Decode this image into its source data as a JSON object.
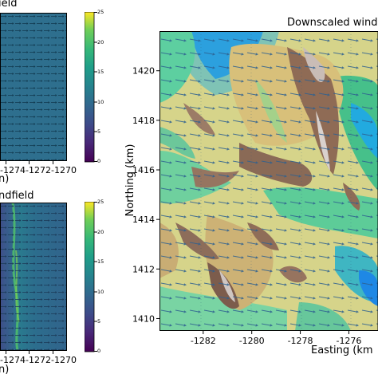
{
  "panel_top_left": {
    "title_fragment": "ield",
    "x_ticks": [
      "1274",
      "1272",
      "1270"
    ],
    "xlabel_fragment": "n)"
  },
  "panel_bottom_left": {
    "title_fragment": "ndfield",
    "xlabel_fragment": "n)"
  },
  "colorbars": {
    "ticks": [
      "25",
      "20",
      "15",
      "10",
      "5",
      "0"
    ],
    "colormap": "viridis"
  },
  "main_panel": {
    "title_fragment": "Downscaled wind",
    "xlabel_fragment": "Easting (km",
    "ylabel": "Northing (km)",
    "terrain_colormap": "terrain",
    "vector_color": "#2a4f9a"
  },
  "chart_data": [
    {
      "type": "heatmap",
      "title": "ield",
      "x_ticks": [
        -1274,
        -1272,
        -1270
      ],
      "colorbar": {
        "min": 0,
        "max": 25,
        "ticks": [
          0,
          5,
          10,
          15,
          20,
          25
        ]
      },
      "field_value": 12,
      "overlay": "wind vectors pointing east"
    },
    {
      "type": "heatmap",
      "title": "ndfield",
      "x_ticks": [
        -1274,
        -1272,
        -1270
      ],
      "colorbar": {
        "min": 0,
        "max": 25,
        "ticks": [
          0,
          5,
          10,
          15,
          20,
          25
        ]
      },
      "overlay": "wind vectors with variable speed"
    },
    {
      "type": "heatmap",
      "title": "Downscaled wind",
      "xlabel": "Easting (km",
      "ylabel": "Northing (km)",
      "x_ticks": [
        -1282,
        -1280,
        -1278,
        -1276
      ],
      "y_ticks": [
        1410,
        1412,
        1414,
        1416,
        1418,
        1420
      ],
      "xlim": [
        -1283.8,
        -1274.8
      ],
      "ylim": [
        1409.5,
        1421.6
      ],
      "grid": false,
      "overlay": "terrain elevation with wind vectors"
    }
  ]
}
